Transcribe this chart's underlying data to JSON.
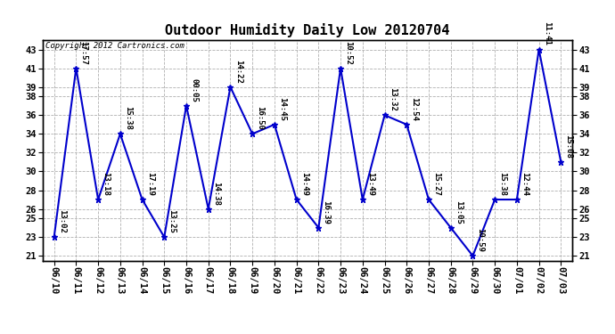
{
  "title": "Outdoor Humidity Daily Low 20120704",
  "copyright": "Copyright 2012 Cartronics.com",
  "line_color": "#0000cc",
  "background_color": "#ffffff",
  "grid_color": "#b0b0b0",
  "x_labels": [
    "06/10",
    "06/11",
    "06/12",
    "06/13",
    "06/14",
    "06/15",
    "06/16",
    "06/17",
    "06/18",
    "06/19",
    "06/20",
    "06/21",
    "06/22",
    "06/23",
    "06/24",
    "06/25",
    "06/26",
    "06/27",
    "06/28",
    "06/29",
    "06/30",
    "07/01",
    "07/02",
    "07/03"
  ],
  "y_values": [
    23,
    41,
    27,
    34,
    27,
    23,
    37,
    26,
    39,
    34,
    35,
    27,
    24,
    41,
    27,
    36,
    35,
    27,
    24,
    21,
    27,
    27,
    43,
    31
  ],
  "point_labels": [
    "13:02",
    "17:57",
    "13:18",
    "15:38",
    "17:19",
    "13:25",
    "00:05",
    "14:38",
    "14:22",
    "16:50",
    "14:45",
    "14:49",
    "16:39",
    "10:52",
    "13:49",
    "13:32",
    "12:54",
    "15:27",
    "13:05",
    "10:59",
    "15:38",
    "12:44",
    "11:41",
    "15:08"
  ],
  "ylim": [
    20.5,
    44
  ],
  "yticks": [
    21,
    23,
    25,
    26,
    28,
    30,
    32,
    34,
    36,
    38,
    39,
    41,
    43
  ],
  "marker": "*",
  "marker_size": 5,
  "line_width": 1.5,
  "title_fontsize": 11,
  "label_fontsize": 6.5,
  "tick_fontsize": 7.5,
  "copyright_fontsize": 6.5
}
